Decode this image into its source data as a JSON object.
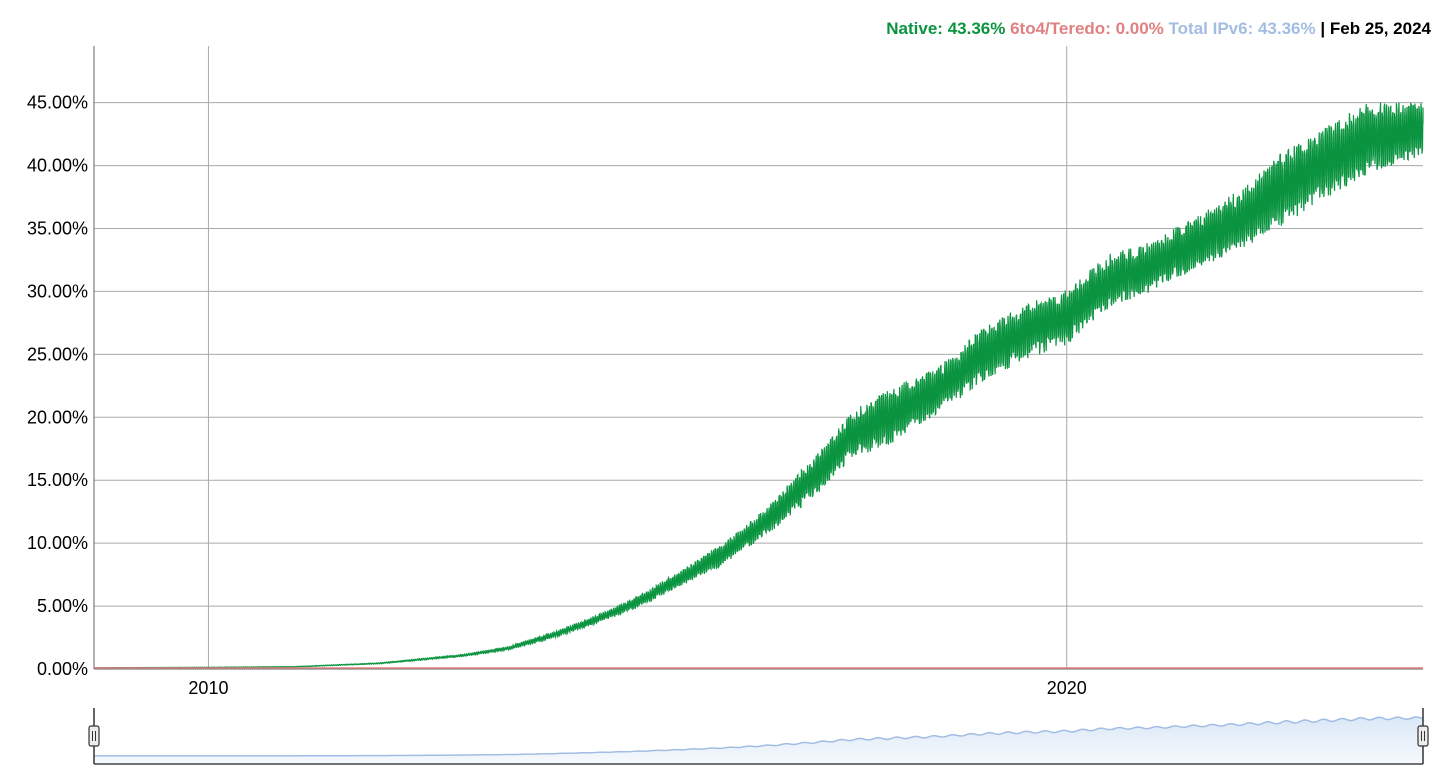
{
  "legend": {
    "native_label": "Native:",
    "native_value": "43.36%",
    "teredo_label": "6to4/Teredo:",
    "teredo_value": "0.00%",
    "total_label": "Total IPv6:",
    "total_value": "43.36%",
    "separator": "|",
    "date": "Feb 25, 2024"
  },
  "colors": {
    "native": "#0a9440",
    "teredo": "#e08080",
    "total": "#a2bde3",
    "grid": "#aaaaaa"
  },
  "chart_data": {
    "type": "line",
    "title": "",
    "xlabel": "",
    "ylabel": "",
    "x_ticks": [
      "2010",
      "2020"
    ],
    "y_ticks": [
      "0.00%",
      "5.00%",
      "10.00%",
      "15.00%",
      "20.00%",
      "25.00%",
      "30.00%",
      "35.00%",
      "40.00%",
      "45.00%"
    ],
    "xlim": [
      "2008-09-01",
      "2024-02-25"
    ],
    "ylim": [
      0,
      49.5
    ],
    "grid": true,
    "legend_position": "top-right",
    "series": [
      {
        "name": "Native",
        "x": [
          "2008-09-01",
          "2010-01-01",
          "2011-01-01",
          "2012-01-01",
          "2013-01-01",
          "2013-07-01",
          "2014-01-01",
          "2014-07-01",
          "2015-01-01",
          "2015-07-01",
          "2016-01-01",
          "2016-07-01",
          "2017-01-01",
          "2017-07-01",
          "2018-01-01",
          "2018-07-01",
          "2019-01-01",
          "2019-07-01",
          "2020-01-01",
          "2020-07-01",
          "2021-01-01",
          "2021-07-01",
          "2022-01-01",
          "2022-07-01",
          "2023-01-01",
          "2023-07-01",
          "2024-02-25"
        ],
        "lower": [
          0.1,
          0.1,
          0.15,
          0.4,
          1.0,
          1.5,
          2.4,
          3.5,
          4.8,
          6.5,
          8.2,
          10.5,
          13.2,
          16.5,
          17.8,
          20.0,
          22.5,
          24.3,
          25.5,
          28.5,
          29.8,
          31.5,
          33.0,
          34.8,
          37.0,
          39.0,
          40.5
        ],
        "upper": [
          0.1,
          0.15,
          0.2,
          0.5,
          1.2,
          1.8,
          2.9,
          4.2,
          5.8,
          7.8,
          10.0,
          12.8,
          16.5,
          20.5,
          22.5,
          24.0,
          27.0,
          29.0,
          30.2,
          33.0,
          34.0,
          36.0,
          38.0,
          41.0,
          43.0,
          45.0,
          45.2
        ],
        "last_value": 43.36
      },
      {
        "name": "6to4/Teredo",
        "x": [
          "2008-09-01",
          "2024-02-25"
        ],
        "values": [
          0.0,
          0.0
        ],
        "last_value": 0.0
      },
      {
        "name": "Total IPv6",
        "x": [
          "2024-02-25"
        ],
        "values": [
          43.36
        ]
      }
    ],
    "navigator": {
      "series": "Total IPv6",
      "range": [
        "2008-09-01",
        "2024-02-25"
      ]
    }
  }
}
